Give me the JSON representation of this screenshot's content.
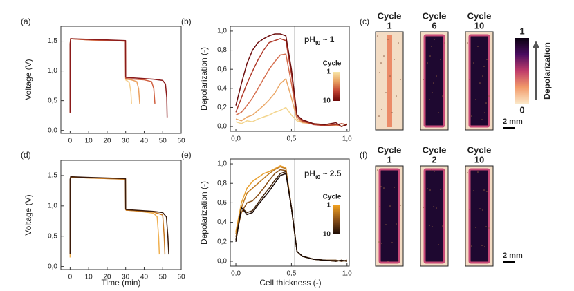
{
  "chart_data": [
    {
      "type": "line",
      "panel_label": "(a)",
      "ylabel": "Voltage (V)",
      "xlim": [
        -5,
        60
      ],
      "xticks": [
        0,
        10,
        20,
        30,
        40,
        50,
        60
      ],
      "ylim": [
        -0.05,
        1.75
      ],
      "yticks": [
        {
          "value": 0,
          "label": "0,0"
        },
        {
          "value": 0.5,
          "label": "0,5"
        },
        {
          "value": 1,
          "label": "1,0"
        },
        {
          "value": 1.5,
          "label": "1,5"
        }
      ],
      "series": [
        {
          "color": "#f5d090",
          "x": [
            0,
            0,
            0.3,
            10,
            20,
            29.9,
            30,
            30.3,
            31,
            32,
            32.8,
            33.2
          ],
          "values": [
            0.3,
            1.45,
            1.54,
            1.52,
            1.51,
            1.5,
            0.85,
            0.84,
            0.83,
            0.8,
            0.65,
            0.45
          ]
        },
        {
          "color": "#eba060",
          "x": [
            0,
            0,
            0.3,
            10,
            20,
            29.9,
            30,
            30.3,
            33,
            36,
            37,
            37.6
          ],
          "values": [
            0.3,
            1.45,
            1.54,
            1.52,
            1.51,
            1.5,
            0.87,
            0.86,
            0.85,
            0.82,
            0.7,
            0.45
          ]
        },
        {
          "color": "#d06040",
          "x": [
            0,
            0,
            0.3,
            10,
            20,
            29.9,
            30,
            30.3,
            35,
            40,
            44,
            45.2,
            45.8
          ],
          "values": [
            0.3,
            1.45,
            1.54,
            1.52,
            1.51,
            1.5,
            0.88,
            0.87,
            0.86,
            0.85,
            0.82,
            0.7,
            0.45
          ]
        },
        {
          "color": "#8a1a1a",
          "x": [
            0,
            0,
            0.3,
            10,
            20,
            29.9,
            30,
            30.3,
            35,
            40,
            45,
            50,
            51.5,
            52.2,
            52.4
          ],
          "values": [
            0.3,
            1.45,
            1.54,
            1.53,
            1.52,
            1.51,
            0.9,
            0.89,
            0.88,
            0.87,
            0.86,
            0.84,
            0.78,
            0.55,
            0.22
          ]
        }
      ]
    },
    {
      "type": "line",
      "panel_label": "(b)",
      "ylabel": "Depolarization (-)",
      "xlim": [
        -0.05,
        1.02
      ],
      "xticks": [
        {
          "value": 0,
          "label": "0,0"
        },
        {
          "value": 0.5,
          "label": "0,5"
        },
        {
          "value": 1,
          "label": "1,0"
        }
      ],
      "ylim": [
        -0.05,
        1.05
      ],
      "yticks": [
        {
          "value": 0,
          "label": "0,0"
        },
        {
          "value": 0.2,
          "label": "0,2"
        },
        {
          "value": 0.4,
          "label": "0,4"
        },
        {
          "value": 0.6,
          "label": "0,6"
        },
        {
          "value": 0.8,
          "label": "0,8"
        },
        {
          "value": 1,
          "label": "1,0"
        }
      ],
      "vline": 0.53,
      "annotation": {
        "text": "pH",
        "subscript": "t0",
        "suffix": " ~ 1"
      },
      "colorbar": {
        "title": "Cycle",
        "ticks": [
          1,
          10
        ],
        "colors": [
          "#f8e6a8",
          "#e8a060",
          "#c04030",
          "#6a0808"
        ]
      },
      "series": [
        {
          "color": "#f3d58e",
          "x": [
            0,
            0.05,
            0.1,
            0.15,
            0.2,
            0.25,
            0.3,
            0.35,
            0.4,
            0.45,
            0.5,
            0.55,
            0.6,
            0.7,
            0.8,
            0.9,
            0.95,
            1.0
          ],
          "values": [
            0.05,
            0.03,
            0.06,
            0.05,
            0.08,
            0.1,
            0.12,
            0.15,
            0.17,
            0.2,
            0.12,
            0.06,
            0.04,
            0.03,
            0.02,
            0.02,
            0.0,
            0.03
          ]
        },
        {
          "color": "#eba868",
          "x": [
            0,
            0.05,
            0.1,
            0.15,
            0.2,
            0.25,
            0.3,
            0.35,
            0.4,
            0.45,
            0.5,
            0.55,
            0.6,
            0.7,
            0.8,
            0.9,
            0.95,
            1.0
          ],
          "values": [
            0.08,
            0.06,
            0.1,
            0.12,
            0.17,
            0.22,
            0.28,
            0.35,
            0.45,
            0.5,
            0.3,
            0.08,
            0.04,
            0.03,
            0.02,
            0.01,
            0.03,
            0.02
          ]
        },
        {
          "color": "#d67050",
          "x": [
            0,
            0.05,
            0.1,
            0.15,
            0.2,
            0.25,
            0.3,
            0.35,
            0.4,
            0.45,
            0.5,
            0.55,
            0.6,
            0.7,
            0.8,
            0.9,
            0.95,
            1.0
          ],
          "values": [
            0.12,
            0.15,
            0.22,
            0.3,
            0.4,
            0.5,
            0.6,
            0.68,
            0.75,
            0.76,
            0.45,
            0.1,
            0.05,
            0.03,
            0.01,
            0.02,
            0.0,
            0.02
          ]
        },
        {
          "color": "#b03a2a",
          "x": [
            0,
            0.05,
            0.1,
            0.15,
            0.2,
            0.25,
            0.3,
            0.35,
            0.4,
            0.45,
            0.5,
            0.55,
            0.6,
            0.7,
            0.8,
            0.9,
            0.95,
            1.0
          ],
          "values": [
            0.15,
            0.3,
            0.45,
            0.58,
            0.7,
            0.8,
            0.88,
            0.9,
            0.92,
            0.9,
            0.55,
            0.12,
            0.06,
            0.02,
            0.01,
            0.02,
            0.03,
            0.02
          ]
        },
        {
          "color": "#6e0e0e",
          "x": [
            0,
            0.05,
            0.1,
            0.15,
            0.2,
            0.25,
            0.3,
            0.35,
            0.4,
            0.45,
            0.5,
            0.55,
            0.6,
            0.7,
            0.8,
            0.9,
            0.95,
            1.0
          ],
          "values": [
            0.22,
            0.45,
            0.66,
            0.8,
            0.88,
            0.92,
            0.95,
            0.97,
            0.97,
            0.95,
            0.6,
            0.12,
            0.07,
            0.03,
            0.02,
            0.04,
            0.0,
            0.02
          ]
        }
      ]
    },
    {
      "type": "image",
      "panel_label": "(c)",
      "columns": [
        {
          "title": "Cycle",
          "cycle": 1
        },
        {
          "title": "Cycle",
          "cycle": 6
        },
        {
          "title": "Cycle",
          "cycle": 10
        }
      ],
      "scale_bar": "2 mm",
      "colorbar": {
        "label": "Depolarization",
        "ticks": [
          0,
          1
        ],
        "colors": [
          "#fbe8c8",
          "#f29a6a",
          "#c03c6a",
          "#4a0c60",
          "#0a0010"
        ]
      }
    },
    {
      "type": "line",
      "panel_label": "(d)",
      "ylabel": "Voltage (V)",
      "xlabel": "Time (min)",
      "xlim": [
        -5,
        60
      ],
      "xticks": [
        0,
        10,
        20,
        30,
        40,
        50,
        60
      ],
      "ylim": [
        -0.05,
        1.75
      ],
      "yticks": [
        {
          "value": 0,
          "label": "0,0"
        },
        {
          "value": 0.5,
          "label": "0,5"
        },
        {
          "value": 1,
          "label": "1,0"
        },
        {
          "value": 1.5,
          "label": "1,5"
        }
      ],
      "series": [
        {
          "color": "#f0b050",
          "x": [
            0,
            0,
            0.3,
            10,
            20,
            29.9,
            30,
            30.3,
            35,
            40,
            45,
            47,
            47.8,
            48.2
          ],
          "values": [
            0.15,
            1.42,
            1.47,
            1.46,
            1.45,
            1.44,
            0.94,
            0.93,
            0.92,
            0.9,
            0.88,
            0.82,
            0.5,
            0.2
          ]
        },
        {
          "color": "#c87820",
          "x": [
            0,
            0,
            0.3,
            10,
            20,
            29.9,
            30,
            30.3,
            35,
            40,
            45,
            50,
            50.8,
            51.2
          ],
          "values": [
            0.2,
            1.43,
            1.47,
            1.46,
            1.45,
            1.44,
            0.94,
            0.93,
            0.92,
            0.91,
            0.9,
            0.85,
            0.5,
            0.2
          ]
        },
        {
          "color": "#3a1a0a",
          "x": [
            0,
            0,
            0.3,
            10,
            20,
            29.9,
            30,
            30.3,
            35,
            40,
            45,
            50,
            52,
            52.8,
            53.3
          ],
          "values": [
            0.2,
            1.44,
            1.48,
            1.47,
            1.46,
            1.45,
            0.95,
            0.94,
            0.93,
            0.92,
            0.91,
            0.89,
            0.82,
            0.5,
            0.2
          ]
        }
      ]
    },
    {
      "type": "line",
      "panel_label": "(e)",
      "ylabel": "Depolarization (-)",
      "xlabel": "Cell thickness (-)",
      "xlim": [
        -0.05,
        1.02
      ],
      "xticks": [
        {
          "value": 0,
          "label": "0,0"
        },
        {
          "value": 0.5,
          "label": "0,5"
        },
        {
          "value": 1,
          "label": "1,0"
        }
      ],
      "ylim": [
        -0.05,
        1.05
      ],
      "yticks": [
        {
          "value": 0,
          "label": "0,0"
        },
        {
          "value": 0.2,
          "label": "0,2"
        },
        {
          "value": 0.4,
          "label": "0,4"
        },
        {
          "value": 0.6,
          "label": "0,6"
        },
        {
          "value": 0.8,
          "label": "0,8"
        },
        {
          "value": 1,
          "label": "1,0"
        }
      ],
      "vline": 0.53,
      "annotation": {
        "text": "pH",
        "subscript": "t0",
        "suffix": " ~ 2.5"
      },
      "colorbar": {
        "title": "Cycle",
        "ticks": [
          1,
          10
        ],
        "colors": [
          "#f0a020",
          "#8a5018",
          "#1a0a05"
        ]
      },
      "series": [
        {
          "color": "#e8a030",
          "x": [
            0,
            0.05,
            0.1,
            0.15,
            0.2,
            0.25,
            0.3,
            0.35,
            0.4,
            0.45,
            0.5,
            0.55,
            0.6,
            0.7,
            0.8,
            0.9,
            0.95,
            1.0
          ],
          "values": [
            0.3,
            0.6,
            0.75,
            0.82,
            0.86,
            0.9,
            0.92,
            0.95,
            0.98,
            0.96,
            0.55,
            0.1,
            0.05,
            0.02,
            0.01,
            0.0,
            0.01,
            0.0
          ]
        },
        {
          "color": "#c07a20",
          "x": [
            0,
            0.05,
            0.1,
            0.15,
            0.2,
            0.25,
            0.3,
            0.35,
            0.4,
            0.45,
            0.5,
            0.55,
            0.6,
            0.7,
            0.8,
            0.9,
            0.95,
            1.0
          ],
          "values": [
            0.28,
            0.55,
            0.7,
            0.75,
            0.8,
            0.85,
            0.9,
            0.94,
            0.97,
            0.95,
            0.55,
            0.1,
            0.05,
            0.02,
            0.01,
            0.01,
            0.0,
            0.01
          ]
        },
        {
          "color": "#8a5018",
          "x": [
            0,
            0.05,
            0.1,
            0.15,
            0.2,
            0.25,
            0.3,
            0.35,
            0.4,
            0.45,
            0.5,
            0.55,
            0.6,
            0.7,
            0.8,
            0.9,
            0.95,
            1.0
          ],
          "values": [
            0.25,
            0.5,
            0.6,
            0.62,
            0.68,
            0.75,
            0.83,
            0.9,
            0.94,
            0.93,
            0.55,
            0.1,
            0.05,
            0.02,
            0.01,
            0.0,
            0.01,
            0.0
          ]
        },
        {
          "color": "#4a2a10",
          "x": [
            0,
            0.05,
            0.1,
            0.15,
            0.2,
            0.25,
            0.3,
            0.35,
            0.4,
            0.45,
            0.5,
            0.55,
            0.6,
            0.7,
            0.8,
            0.9,
            0.95,
            1.0
          ],
          "values": [
            0.22,
            0.55,
            0.5,
            0.52,
            0.6,
            0.68,
            0.75,
            0.83,
            0.9,
            0.92,
            0.55,
            0.1,
            0.05,
            0.02,
            0.01,
            0.01,
            0.0,
            0.01
          ]
        },
        {
          "color": "#1a0a05",
          "x": [
            0,
            0.05,
            0.1,
            0.15,
            0.2,
            0.25,
            0.3,
            0.35,
            0.4,
            0.45,
            0.5,
            0.55,
            0.6,
            0.7,
            0.8,
            0.9,
            0.95,
            1.0
          ],
          "values": [
            0.2,
            0.55,
            0.48,
            0.5,
            0.58,
            0.65,
            0.72,
            0.8,
            0.88,
            0.9,
            0.55,
            0.1,
            0.05,
            0.02,
            0.01,
            0.0,
            0.01,
            0.0
          ]
        }
      ]
    },
    {
      "type": "image",
      "panel_label": "(f)",
      "columns": [
        {
          "title": "Cycle",
          "cycle": 1
        },
        {
          "title": "Cycle",
          "cycle": 2
        },
        {
          "title": "Cycle",
          "cycle": 10
        }
      ],
      "scale_bar": "2 mm"
    }
  ]
}
